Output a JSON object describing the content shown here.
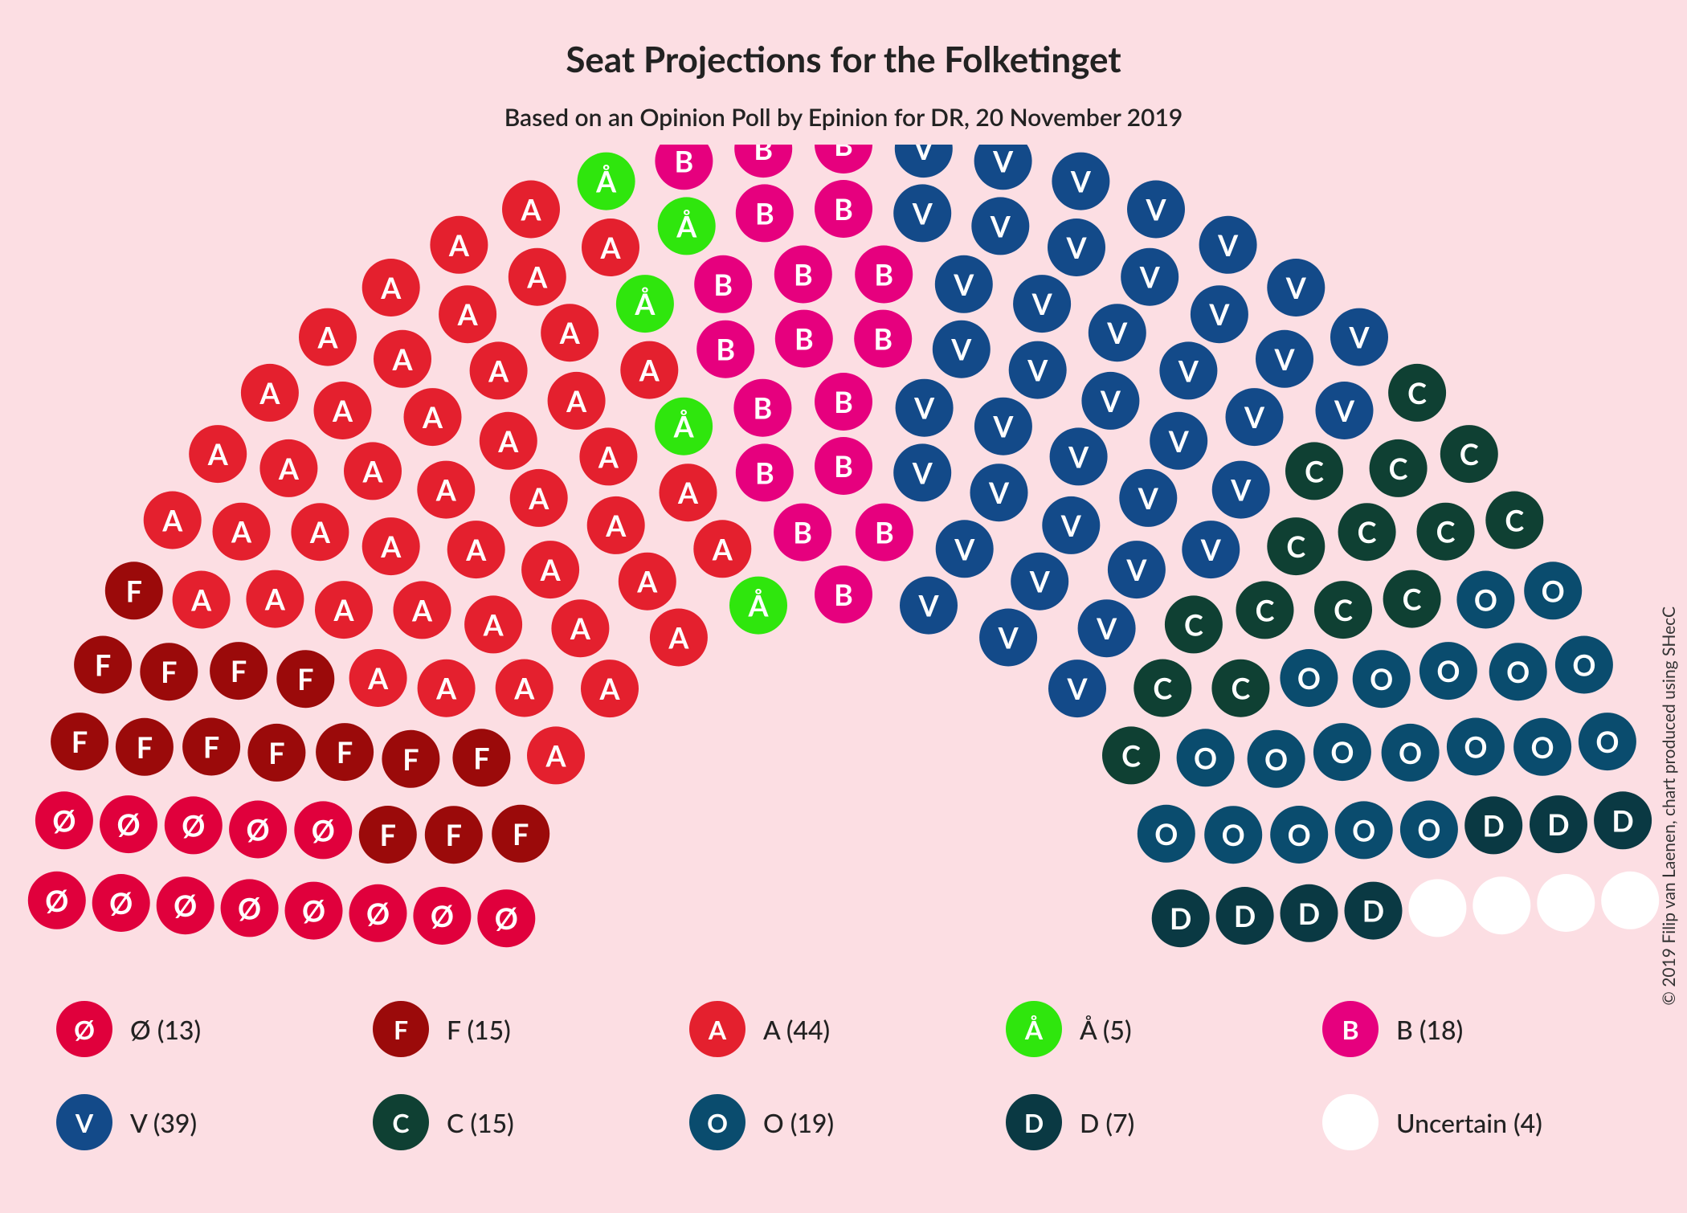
{
  "title": "Seat Projections for the Folketinget",
  "subtitle": "Based on an Opinion Poll by Epinion for DR, 20 November 2019",
  "credit": "© 2019 Filip van Laenen, chart produced using SHecC",
  "background_color": "#fcdee3",
  "text_color": "#222222",
  "chart": {
    "type": "hemicycle",
    "total_seats": 179,
    "seat_radius_ratio": 0.95,
    "label_text_color_light": "#ffffff",
    "label_text_color_dark": "#222222",
    "parties": [
      {
        "id": "Ø",
        "label": "Ø",
        "seats": 13,
        "color": "#e0003c",
        "text": "light"
      },
      {
        "id": "F",
        "label": "F",
        "seats": 15,
        "color": "#9b0a0a",
        "text": "light"
      },
      {
        "id": "A",
        "label": "A",
        "seats": 44,
        "color": "#e4202e",
        "text": "light"
      },
      {
        "id": "Å",
        "label": "Å",
        "seats": 5,
        "color": "#2fe60d",
        "text": "light"
      },
      {
        "id": "B",
        "label": "B",
        "seats": 18,
        "color": "#e6007e",
        "text": "light"
      },
      {
        "id": "V",
        "label": "V",
        "seats": 39,
        "color": "#134a89",
        "text": "light"
      },
      {
        "id": "C",
        "label": "C",
        "seats": 15,
        "color": "#0f4033",
        "text": "light"
      },
      {
        "id": "O",
        "label": "O",
        "seats": 19,
        "color": "#0a4c6e",
        "text": "light"
      },
      {
        "id": "D",
        "label": "D",
        "seats": 7,
        "color": "#0a3943",
        "text": "light"
      },
      {
        "id": "Uncertain",
        "label": "",
        "seats": 4,
        "color": "#ffffff",
        "text": "dark"
      }
    ]
  },
  "legend": [
    {
      "party": "Ø",
      "text": "Ø (13)"
    },
    {
      "party": "F",
      "text": "F (15)"
    },
    {
      "party": "A",
      "text": "A (44)"
    },
    {
      "party": "Å",
      "text": "Å (5)"
    },
    {
      "party": "B",
      "text": "B (18)"
    },
    {
      "party": "V",
      "text": "V (39)"
    },
    {
      "party": "C",
      "text": "C (15)"
    },
    {
      "party": "O",
      "text": "O (19)"
    },
    {
      "party": "D",
      "text": "D (7)"
    },
    {
      "party": "Uncertain",
      "text": "Uncertain (4)"
    }
  ]
}
